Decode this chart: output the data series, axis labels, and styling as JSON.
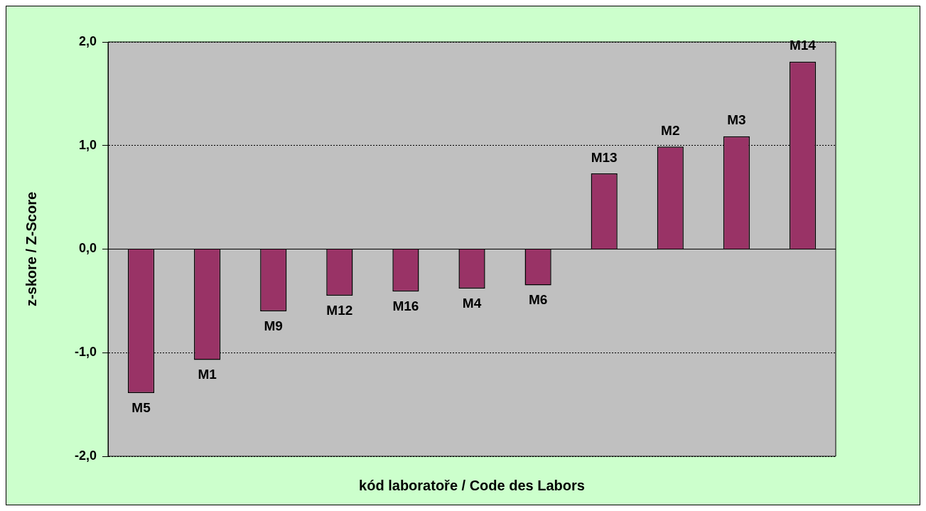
{
  "chart_data": {
    "type": "bar",
    "xlabel": "kód laboratoře / Code des Labors",
    "ylabel": "z-skore / Z-Score",
    "categories": [
      "M5",
      "M1",
      "M9",
      "M12",
      "M16",
      "M4",
      "M6",
      "M13",
      "M2",
      "M3",
      "M14"
    ],
    "values": [
      -1.39,
      -1.07,
      -0.6,
      -0.45,
      -0.41,
      -0.38,
      -0.35,
      0.73,
      0.99,
      1.09,
      1.81
    ],
    "color": "#993366",
    "ylim": [
      -2,
      2
    ],
    "yticks": [
      {
        "value": -2,
        "label": "-2,0"
      },
      {
        "value": -1,
        "label": "-1,0"
      },
      {
        "value": 0,
        "label": "0,0"
      },
      {
        "value": 1,
        "label": "1,0"
      },
      {
        "value": 2,
        "label": "2,0"
      }
    ],
    "grid": "y",
    "tick_labels": "y",
    "legend": false
  }
}
